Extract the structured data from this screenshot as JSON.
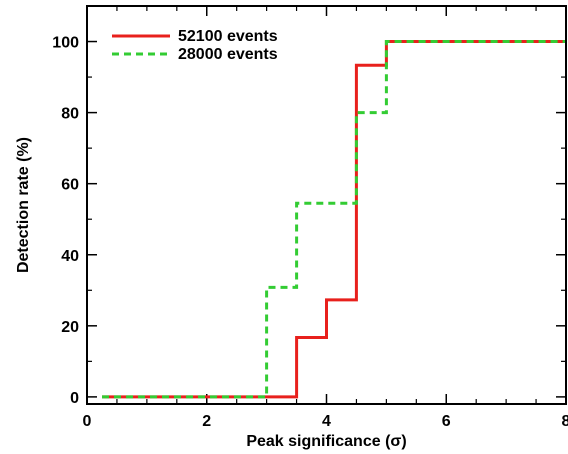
{
  "chart_data": {
    "type": "line",
    "step": true,
    "xlabel": "Peak significance (σ)",
    "ylabel": "Detection rate (%)",
    "xlim": [
      0,
      8
    ],
    "ylim": [
      -2,
      110
    ],
    "xticks": [
      0,
      2,
      4,
      6,
      8
    ],
    "yticks": [
      0,
      20,
      40,
      60,
      80,
      100
    ],
    "legend_position": "top-left",
    "series": [
      {
        "name": "52100 events",
        "color": "#e8201c",
        "style": "solid",
        "x": [
          0.25,
          3.5,
          3.5,
          4.0,
          4.0,
          4.5,
          4.5,
          5.0,
          5.0,
          8.0
        ],
        "y": [
          0,
          0,
          16.7,
          16.7,
          27.3,
          27.3,
          93.3,
          93.3,
          100,
          100
        ]
      },
      {
        "name": "28000 events",
        "color": "#33cc33",
        "style": "dashed",
        "x": [
          0.25,
          3.0,
          3.0,
          3.5,
          3.5,
          4.5,
          4.5,
          5.0,
          5.0,
          8.0
        ],
        "y": [
          0,
          0,
          30.8,
          30.8,
          54.5,
          54.5,
          80,
          80,
          100,
          100
        ]
      }
    ]
  }
}
